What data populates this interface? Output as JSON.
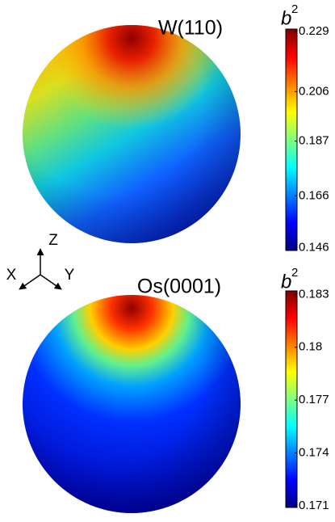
{
  "chart_data": [
    {
      "type": "colormap-sphere",
      "title": "W(110)",
      "colorbar_label": "b",
      "colorbar_label_sup": "2",
      "colormap": "jet",
      "ylim": [
        0.145,
        0.23
      ],
      "yticks": [
        0.229,
        0.206,
        0.187,
        0.166,
        0.146
      ]
    },
    {
      "type": "colormap-sphere",
      "title": "Os(0001)",
      "colorbar_label": "b",
      "colorbar_label_sup": "2",
      "colormap": "jet",
      "ylim": [
        0.1709,
        0.1832
      ],
      "yticks": [
        0.183,
        0.18,
        0.177,
        0.174,
        0.171
      ]
    }
  ],
  "triad": {
    "x": "X",
    "y": "Y",
    "z": "Z"
  }
}
